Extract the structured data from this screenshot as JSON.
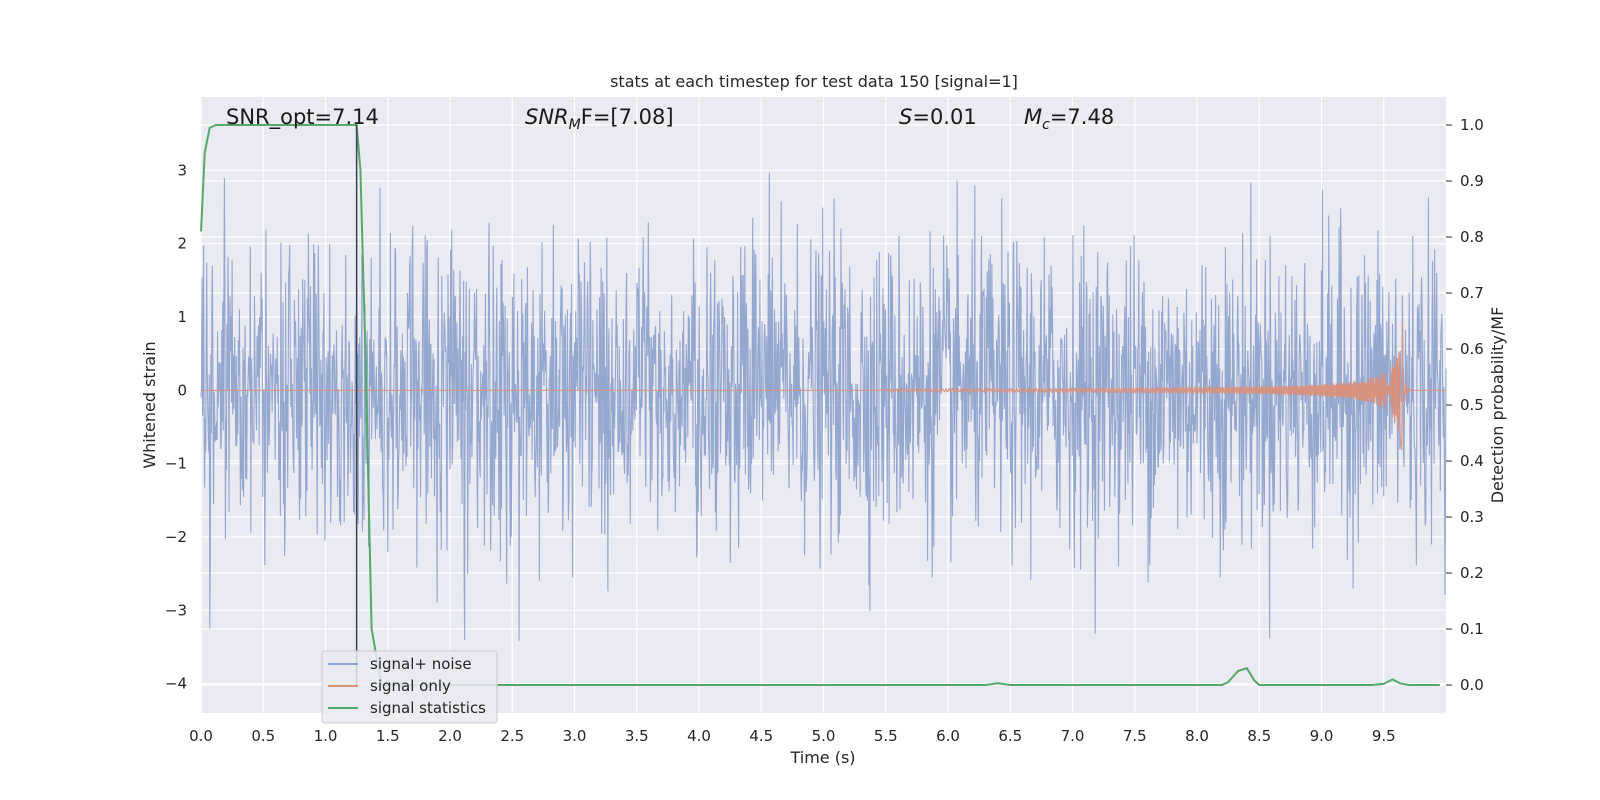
{
  "chart_data": {
    "type": "line",
    "title": "stats at each timestep for test data 150 [signal=1]",
    "xlabel": "Time (s)",
    "ylabel_left": "Whitened strain",
    "ylabel_right": "Detection probability/MF",
    "xlim": [
      0,
      10
    ],
    "ylim_left": [
      -4.4,
      4.0
    ],
    "ylim_right": [
      -0.05,
      1.05
    ],
    "x_ticks": [
      0.0,
      0.5,
      1.0,
      1.5,
      2.0,
      2.5,
      3.0,
      3.5,
      4.0,
      4.5,
      5.0,
      5.5,
      6.0,
      6.5,
      7.0,
      7.5,
      8.0,
      8.5,
      9.0,
      9.5
    ],
    "x_tick_labels": [
      "0.0",
      "0.5",
      "1.0",
      "1.5",
      "2.0",
      "2.5",
      "3.0",
      "3.5",
      "4.0",
      "4.5",
      "5.0",
      "5.5",
      "6.0",
      "6.5",
      "7.0",
      "7.5",
      "8.0",
      "8.5",
      "9.0",
      "9.5"
    ],
    "y_left_ticks": [
      -4,
      -3,
      -2,
      -1,
      0,
      1,
      2,
      3
    ],
    "y_left_tick_labels": [
      "−4",
      "−3",
      "−2",
      "−1",
      "0",
      "1",
      "2",
      "3"
    ],
    "y_right_ticks": [
      0.0,
      0.1,
      0.2,
      0.3,
      0.4,
      0.5,
      0.6,
      0.7,
      0.8,
      0.9,
      1.0
    ],
    "y_right_tick_labels": [
      "0.0",
      "0.1",
      "0.2",
      "0.3",
      "0.4",
      "0.5",
      "0.6",
      "0.7",
      "0.8",
      "0.9",
      "1.0"
    ],
    "grid": true,
    "legend_position": "lower-left",
    "annotations": {
      "snr_opt": "SNR_opt=7.14",
      "snr_mf_italic": "SNR",
      "snr_mf_sub": "M",
      "snr_mf_rest": "F=[7.08]",
      "s_italic": "S",
      "s_rest": "=0.01",
      "mc_italic": "M",
      "mc_sub": "c",
      "mc_rest": "=7.48"
    },
    "vertical_marker_x": 1.25,
    "series": [
      {
        "name": "signal+ noise",
        "color": "#8fa3cc",
        "axis": "left",
        "kind": "noise",
        "amplitude_std": 1.0
      },
      {
        "name": "signal only",
        "color": "#d9907a",
        "axis": "left",
        "kind": "chirp",
        "merger_time": 9.65,
        "peak_amplitude": 0.95,
        "onset_time": 5.5
      },
      {
        "name": "signal statistics",
        "color": "#55a868",
        "axis": "right",
        "x": [
          0.0,
          0.03,
          0.07,
          0.12,
          0.2,
          0.5,
          1.0,
          1.17,
          1.25,
          1.28,
          1.32,
          1.37,
          1.45,
          2.0,
          3.0,
          4.0,
          5.0,
          6.0,
          6.3,
          6.4,
          6.5,
          7.0,
          8.0,
          8.2,
          8.25,
          8.33,
          8.4,
          8.46,
          8.5,
          9.0,
          9.4,
          9.5,
          9.57,
          9.63,
          9.7,
          9.95
        ],
        "y": [
          0.81,
          0.95,
          0.995,
          1.0,
          1.0,
          1.0,
          1.0,
          1.0,
          1.0,
          0.92,
          0.6,
          0.1,
          0.0,
          0.0,
          0.0,
          0.0,
          0.0,
          0.0,
          0.0,
          0.003,
          0.0,
          0.0,
          0.0,
          0.0,
          0.005,
          0.025,
          0.03,
          0.008,
          0.0,
          0.0,
          0.0,
          0.002,
          0.01,
          0.003,
          0.0,
          0.0
        ]
      }
    ]
  }
}
